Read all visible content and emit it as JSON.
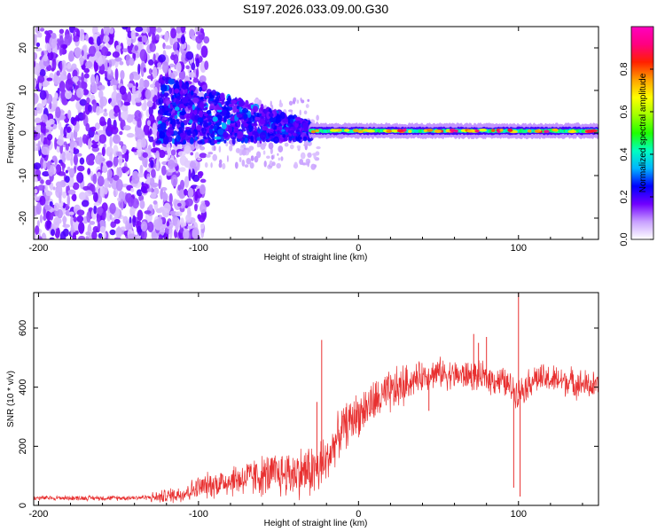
{
  "chart_data": [
    {
      "type": "heatmap",
      "title": "S197.2026.033.09.00.G30",
      "xlabel": "Height of straight line (km)",
      "ylabel": "Frequency (Hz)",
      "xlim": [
        -203,
        150
      ],
      "ylim": [
        -25,
        25
      ],
      "xticks": [
        -200,
        -100,
        0,
        100
      ],
      "xtick_labels": [
        "-200",
        "-100",
        "0",
        "100"
      ],
      "yticks": [
        -20,
        -10,
        0,
        10,
        20
      ],
      "ytick_labels": [
        "-20",
        "-10",
        "0",
        "10",
        "20"
      ],
      "colorbar": {
        "label": "Normalized spectral amplitude",
        "range": [
          0.0,
          1.0
        ],
        "ticks": [
          0.0,
          0.2,
          0.4,
          0.6,
          0.8
        ],
        "tick_labels": [
          "0.0",
          "0.2",
          "0.4",
          "0.6",
          "0.8"
        ],
        "colors": [
          "#ffffff",
          "#c8a0ff",
          "#7000ff",
          "#0000ff",
          "#00b4ff",
          "#00ffc0",
          "#20ff00",
          "#a0ff00",
          "#ffff00",
          "#ffa000",
          "#ff2000",
          "#ff0080",
          "#ff00c0"
        ]
      },
      "features": {
        "noise_region_km": [
          -203,
          -100
        ],
        "dispersed_region_km": [
          -125,
          -30
        ],
        "steady_line_km": [
          -30,
          150
        ],
        "steady_line_frequency_hz": 0.5
      }
    },
    {
      "type": "line",
      "title": "",
      "xlabel": "Height of straight line (km)",
      "ylabel": "SNR (10 * v/v)",
      "xlim": [
        -203,
        150
      ],
      "ylim": [
        0,
        720
      ],
      "xticks": [
        -200,
        -100,
        0,
        100
      ],
      "xtick_labels": [
        "-200",
        "-100",
        "0",
        "100"
      ],
      "yticks": [
        0,
        200,
        400,
        600
      ],
      "ytick_labels": [
        "0",
        "200",
        "400",
        "600"
      ],
      "color": "#e83030",
      "trend": {
        "x": [
          -203,
          -150,
          -125,
          -110,
          -100,
          -80,
          -60,
          -40,
          -25,
          -20,
          -15,
          -10,
          0,
          10,
          20,
          30,
          40,
          50,
          60,
          70,
          80,
          90,
          95,
          100,
          110,
          130,
          150
        ],
        "y": [
          25,
          25,
          28,
          40,
          60,
          85,
          100,
          110,
          120,
          150,
          210,
          260,
          310,
          350,
          380,
          410,
          440,
          450,
          440,
          440,
          430,
          420,
          400,
          380,
          430,
          420,
          400
        ]
      },
      "spikes": [
        {
          "x": -23,
          "y": 560
        },
        {
          "x": -26,
          "y": 350
        },
        {
          "x": 72,
          "y": 580
        },
        {
          "x": 75,
          "y": 550
        },
        {
          "x": 80,
          "y": 570
        },
        {
          "x": 100,
          "y": 720
        },
        {
          "x": 101,
          "y": 30
        },
        {
          "x": 97,
          "y": 60
        },
        {
          "x": 44,
          "y": 320
        }
      ]
    }
  ]
}
